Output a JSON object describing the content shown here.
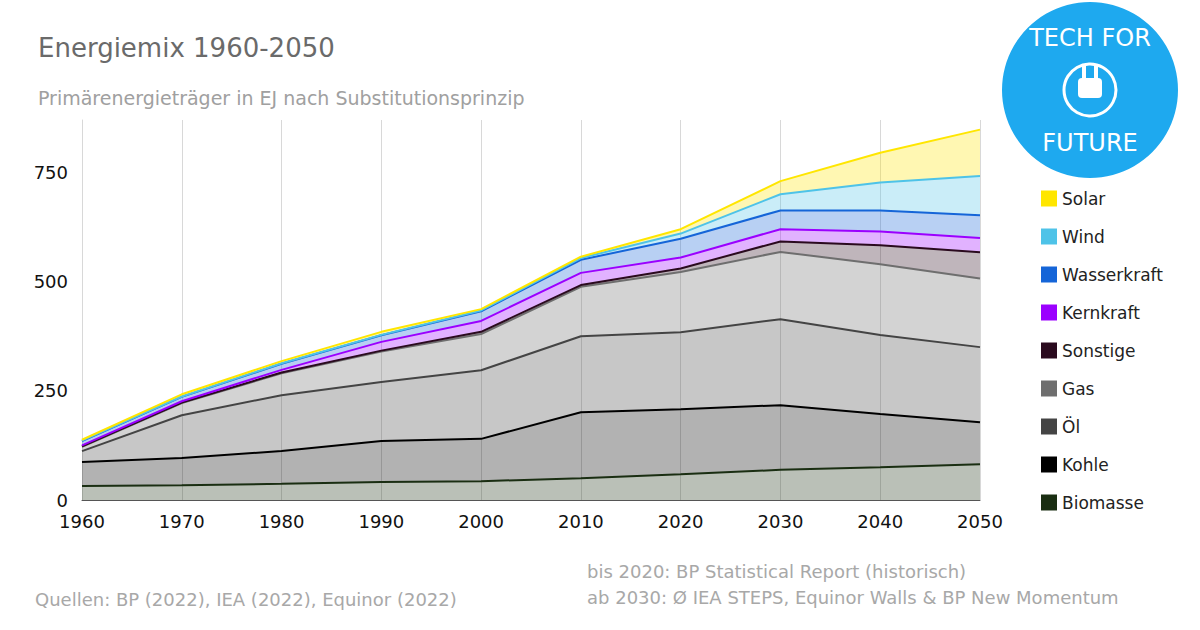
{
  "chart_data": {
    "type": "area",
    "title": "Energiemix 1960-2050",
    "subtitle": "Primärenergieträger in EJ nach Substitutionsprinzip",
    "annotations": [
      "Quellen: BP (2022), IEA (2022), Equinor (2022)",
      "bis 2020: BP Statistical Report (historisch)",
      "ab 2030: Ø IEA STEPS, Equinor Walls & BP New Momentum",
      "TECH FOR",
      "FUTURE"
    ],
    "x": [
      1960,
      1970,
      1980,
      1990,
      2000,
      2010,
      2020,
      2030,
      2040,
      2050
    ],
    "series": [
      {
        "name": "Biomasse",
        "color": "#1a2e12",
        "values": [
          32,
          34,
          37,
          41,
          43,
          50,
          59,
          69,
          75,
          82
        ]
      },
      {
        "name": "Kohle",
        "color": "#000000",
        "values": [
          55,
          62,
          75,
          94,
          97,
          151,
          149,
          148,
          122,
          96
        ]
      },
      {
        "name": "Öl",
        "color": "#444444",
        "values": [
          25,
          98,
          128,
          135,
          157,
          174,
          176,
          197,
          181,
          172
        ]
      },
      {
        "name": "Gas",
        "color": "#6e6e6e",
        "values": [
          10,
          28,
          50,
          70,
          83,
          113,
          138,
          154,
          162,
          157
        ]
      },
      {
        "name": "Sonstige",
        "color": "#2a0a1e",
        "values": [
          1,
          1,
          2,
          2,
          5,
          4,
          8,
          24,
          43,
          60
        ]
      },
      {
        "name": "Kernkraft",
        "color": "#9b00ff",
        "values": [
          2,
          3,
          6,
          20,
          25,
          28,
          25,
          28,
          32,
          33
        ]
      },
      {
        "name": "Wasserkraft",
        "color": "#1565d8",
        "values": [
          10,
          10,
          14,
          15,
          22,
          30,
          43,
          43,
          48,
          52
        ]
      },
      {
        "name": "Wind",
        "color": "#4ec3e8",
        "values": [
          1,
          1,
          1,
          1,
          2,
          4,
          12,
          37,
          64,
          90
        ]
      },
      {
        "name": "Solar",
        "color": "#ffe600",
        "values": [
          2,
          5,
          5,
          7,
          3,
          3,
          10,
          30,
          68,
          106
        ]
      }
    ],
    "ylim": [
      0,
      870
    ],
    "yticks": [
      0,
      250,
      500,
      750
    ],
    "stacked": true,
    "grid": true,
    "legend": "right"
  }
}
